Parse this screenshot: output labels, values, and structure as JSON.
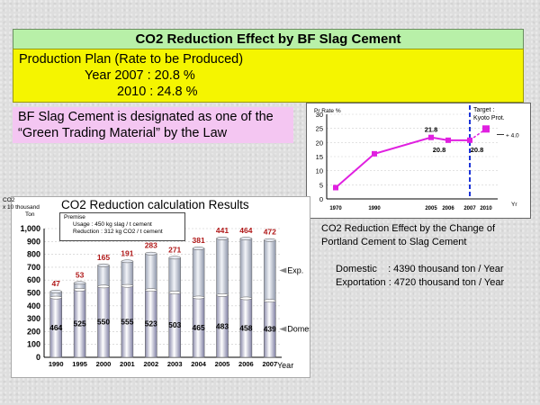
{
  "title": "CO2 Reduction Effect by BF Slag Cement",
  "production_plan": {
    "heading": "Production Plan (Rate to be Produced)",
    "line_2007": "Year 2007 : 20.8 %",
    "line_2010": "2010 : 24.8 %"
  },
  "green_material": {
    "line1": "BF Slag Cement is designated as one of the",
    "line2": "“Green Trading Material” by the Law"
  },
  "calc_title": "CO2 Reduction calculation Results",
  "premise": {
    "title": "Premise",
    "usage": "Usage       : 450 kg slag / t cement",
    "reduction": "Reduction   : 312 kg CO2 / t cement"
  },
  "unit_label": {
    "line1": "CO2",
    "line2": "x 10 thousand",
    "line3": "Ton"
  },
  "effect": {
    "title_line1": "CO2 Reduction Effect by the Change of",
    "title_line2": "Portland Cement to Slag Cement",
    "domestic": "Domestic    : 4390 thousand ton / Year",
    "exportation": "Exportation : 4720 thousand ton / Year"
  },
  "colors": {
    "title_bg": "#b8f0a8",
    "plan_bg": "#f5f500",
    "green_bg": "#f4c6f2",
    "trend_line": "#e020e0",
    "target_line": "#1c34d8",
    "bar_red_label": "#b01818"
  },
  "chart_data": [
    {
      "type": "bar",
      "title": "CO2 Reduction calculation Results",
      "xlabel": "Year",
      "ylabel": "",
      "categories": [
        "1990",
        "1995",
        "2000",
        "2001",
        "2002",
        "2003",
        "2004",
        "2005",
        "2006",
        "2007"
      ],
      "ylim": [
        0,
        1000
      ],
      "yticks": [
        "0",
        "100",
        "200",
        "300",
        "400",
        "500",
        "600",
        "700",
        "800",
        "900",
        "1,000"
      ],
      "stacked": true,
      "series": [
        {
          "name": "Domes.",
          "values": [
            464,
            525,
            550,
            555,
            523,
            503,
            465,
            483,
            458,
            439
          ]
        },
        {
          "name": "Exp.",
          "values": [
            47,
            53,
            165,
            191,
            283,
            271,
            381,
            441,
            464,
            472
          ]
        }
      ],
      "grid": true
    },
    {
      "type": "line",
      "title": "",
      "ylabel": "Pr  Rate  %",
      "xlabel": "Yr",
      "x": [
        "1970",
        "1990",
        "2005",
        "2006",
        "2007",
        "2010"
      ],
      "y": [
        4,
        16,
        21.8,
        20.8,
        20.8,
        24.8
      ],
      "data_labels": [
        "",
        "",
        "21.8",
        "20.8",
        "20.8",
        ""
      ],
      "ylim": [
        0,
        30
      ],
      "yticks": [
        "0",
        "5",
        "10",
        "15",
        "20",
        "25",
        "30"
      ],
      "target_year": "2007",
      "target_label_line1": "Target :",
      "target_label_line2": "Kyoto Prot.",
      "delta_label": "+ 4.0"
    }
  ]
}
